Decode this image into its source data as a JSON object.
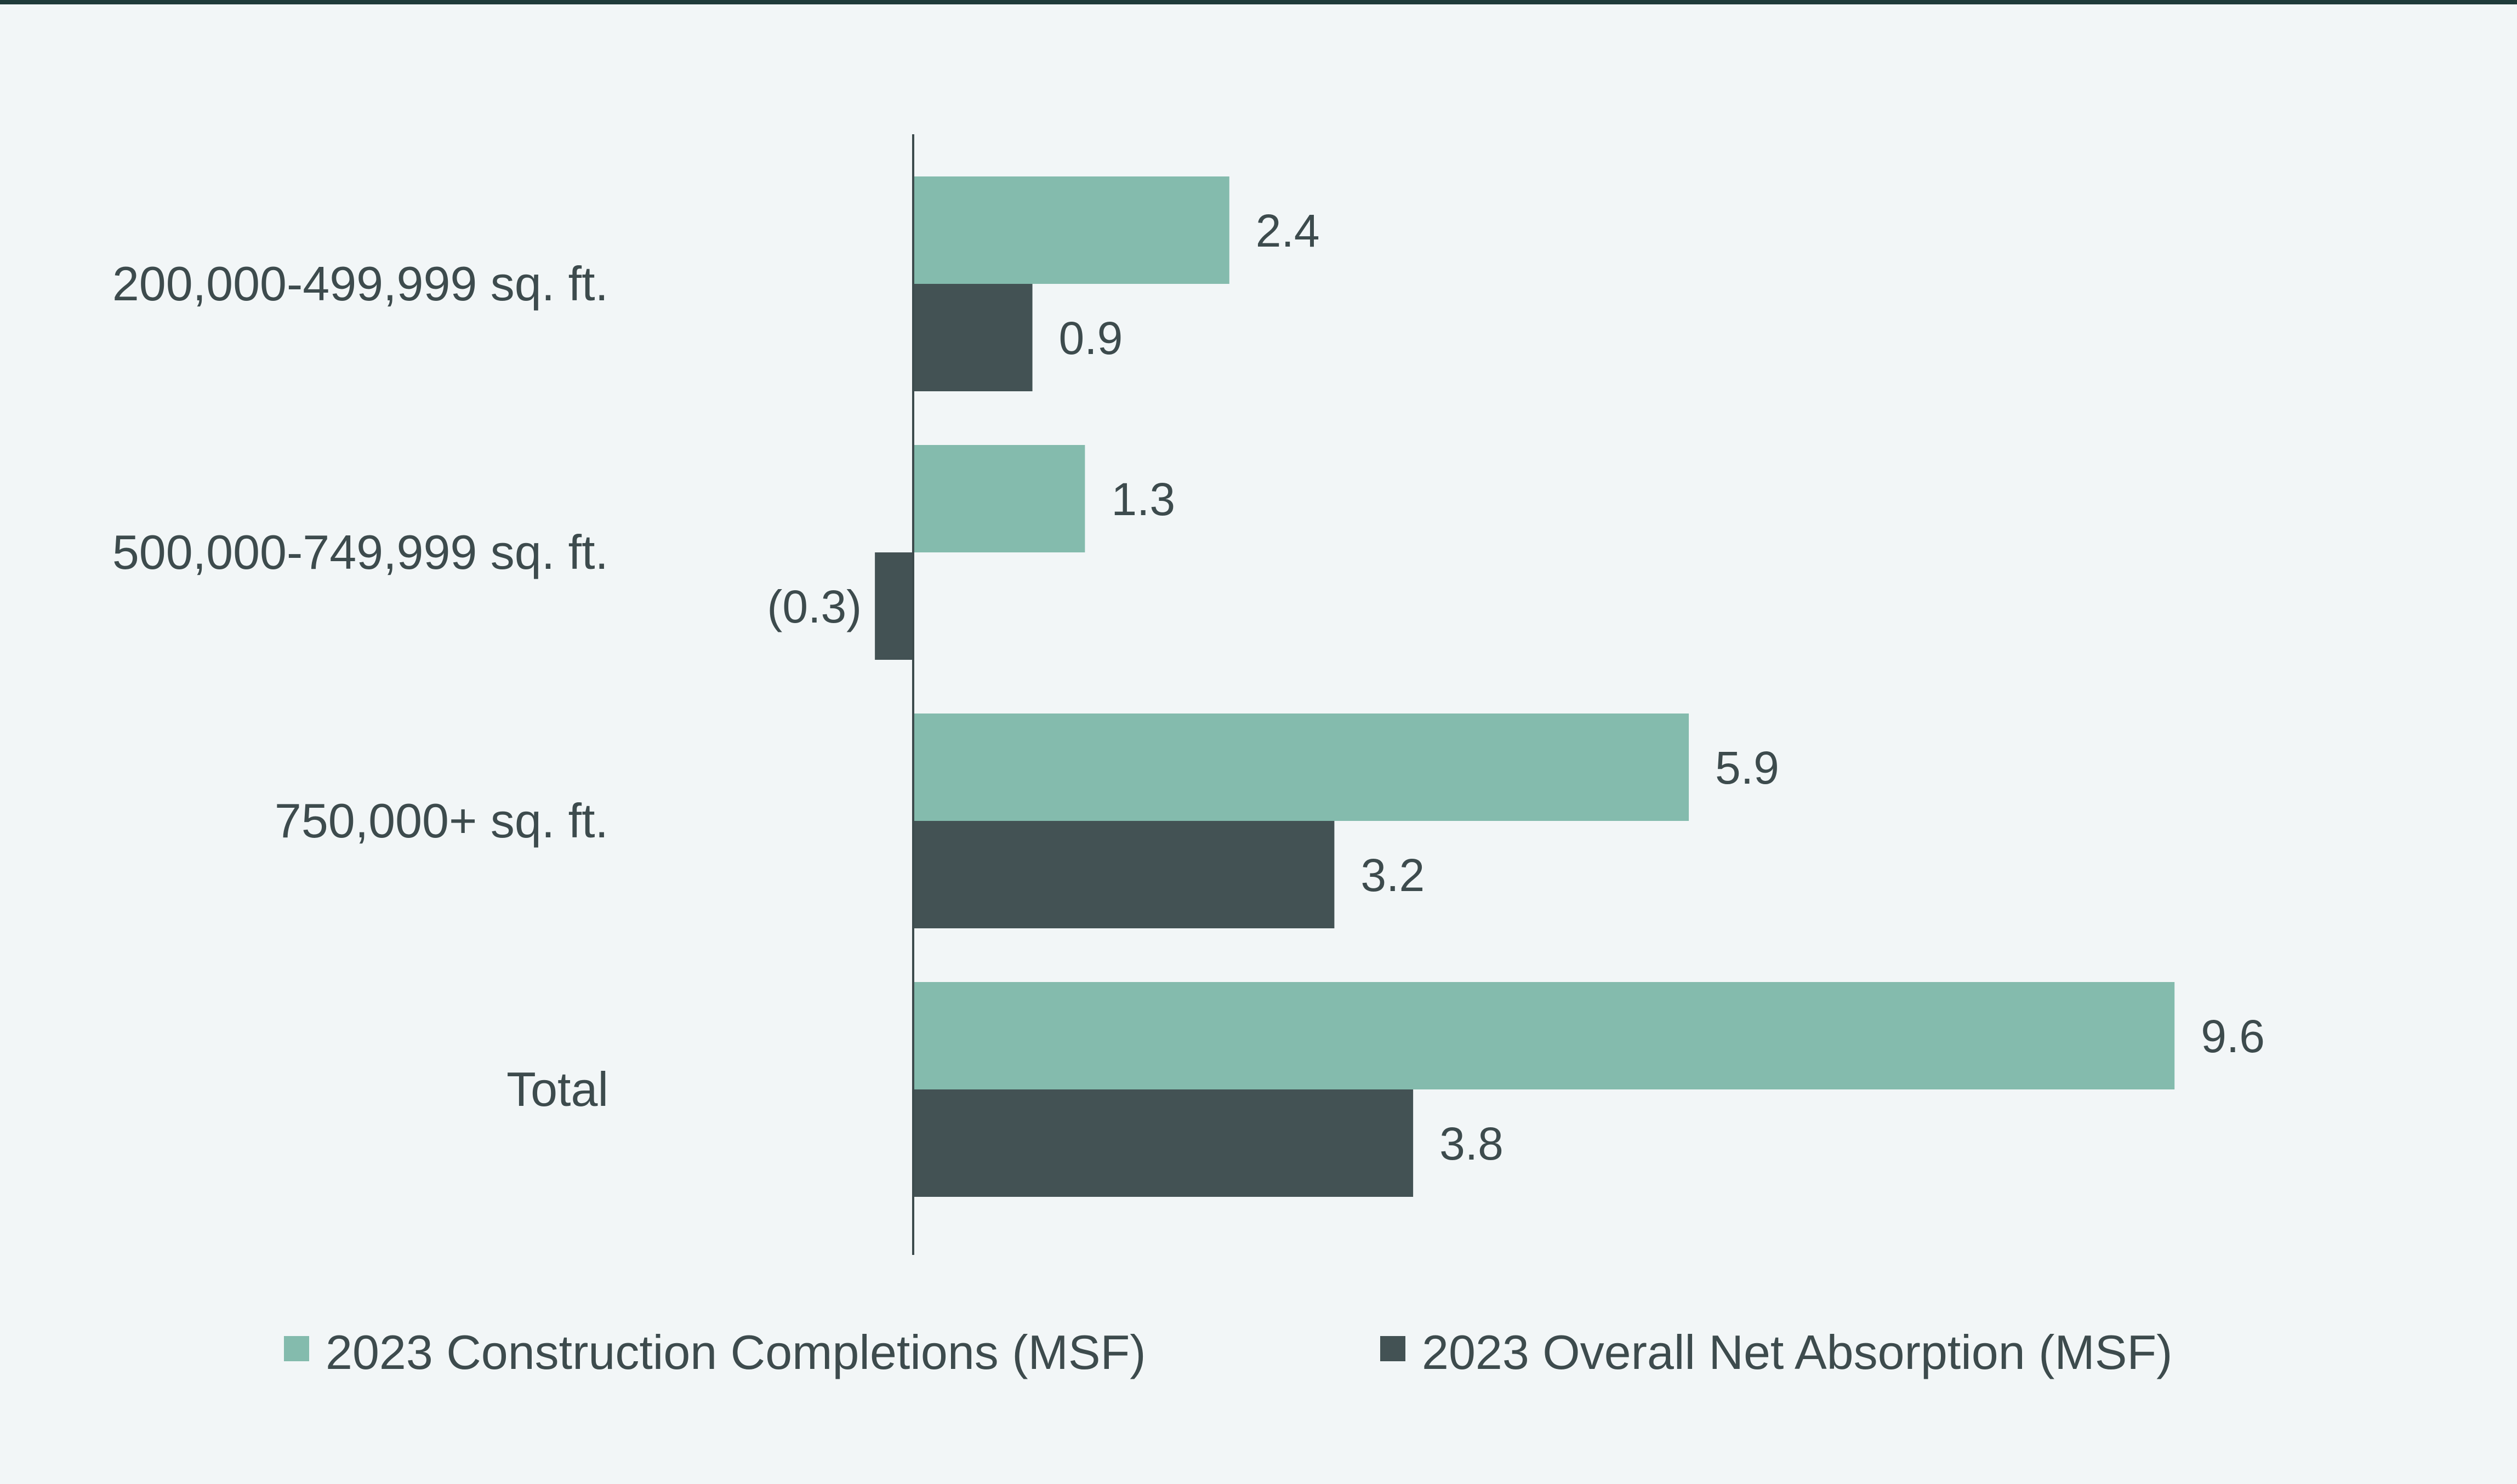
{
  "colors": {
    "background": "#f2f6f7",
    "completions": "#84bbad",
    "absorption": "#435254",
    "text": "#3d4b4d",
    "axis": "#3d4b4d",
    "top_rule": "#1f3b3a"
  },
  "chart_data": {
    "type": "bar",
    "orientation": "horizontal",
    "title": "",
    "xlabel": "",
    "ylabel": "",
    "categories": [
      "200,000-499,999 sq. ft.",
      "500,000-749,999 sq. ft.",
      "750,000+ sq. ft.",
      "Total"
    ],
    "series": [
      {
        "name": "2023 Construction Completions (MSF)",
        "values": [
          2.4,
          1.3,
          5.9,
          9.6
        ],
        "labels": [
          "2.4",
          "1.3",
          "5.9",
          "9.6"
        ]
      },
      {
        "name": "2023 Overall Net Absorption (MSF)",
        "values": [
          0.9,
          -0.3,
          3.2,
          3.8
        ],
        "labels": [
          "0.9",
          "(0.3)",
          "3.2",
          "3.8"
        ]
      }
    ],
    "xlim": [
      -0.3,
      9.6
    ],
    "grid": false,
    "legend_position": "bottom"
  }
}
